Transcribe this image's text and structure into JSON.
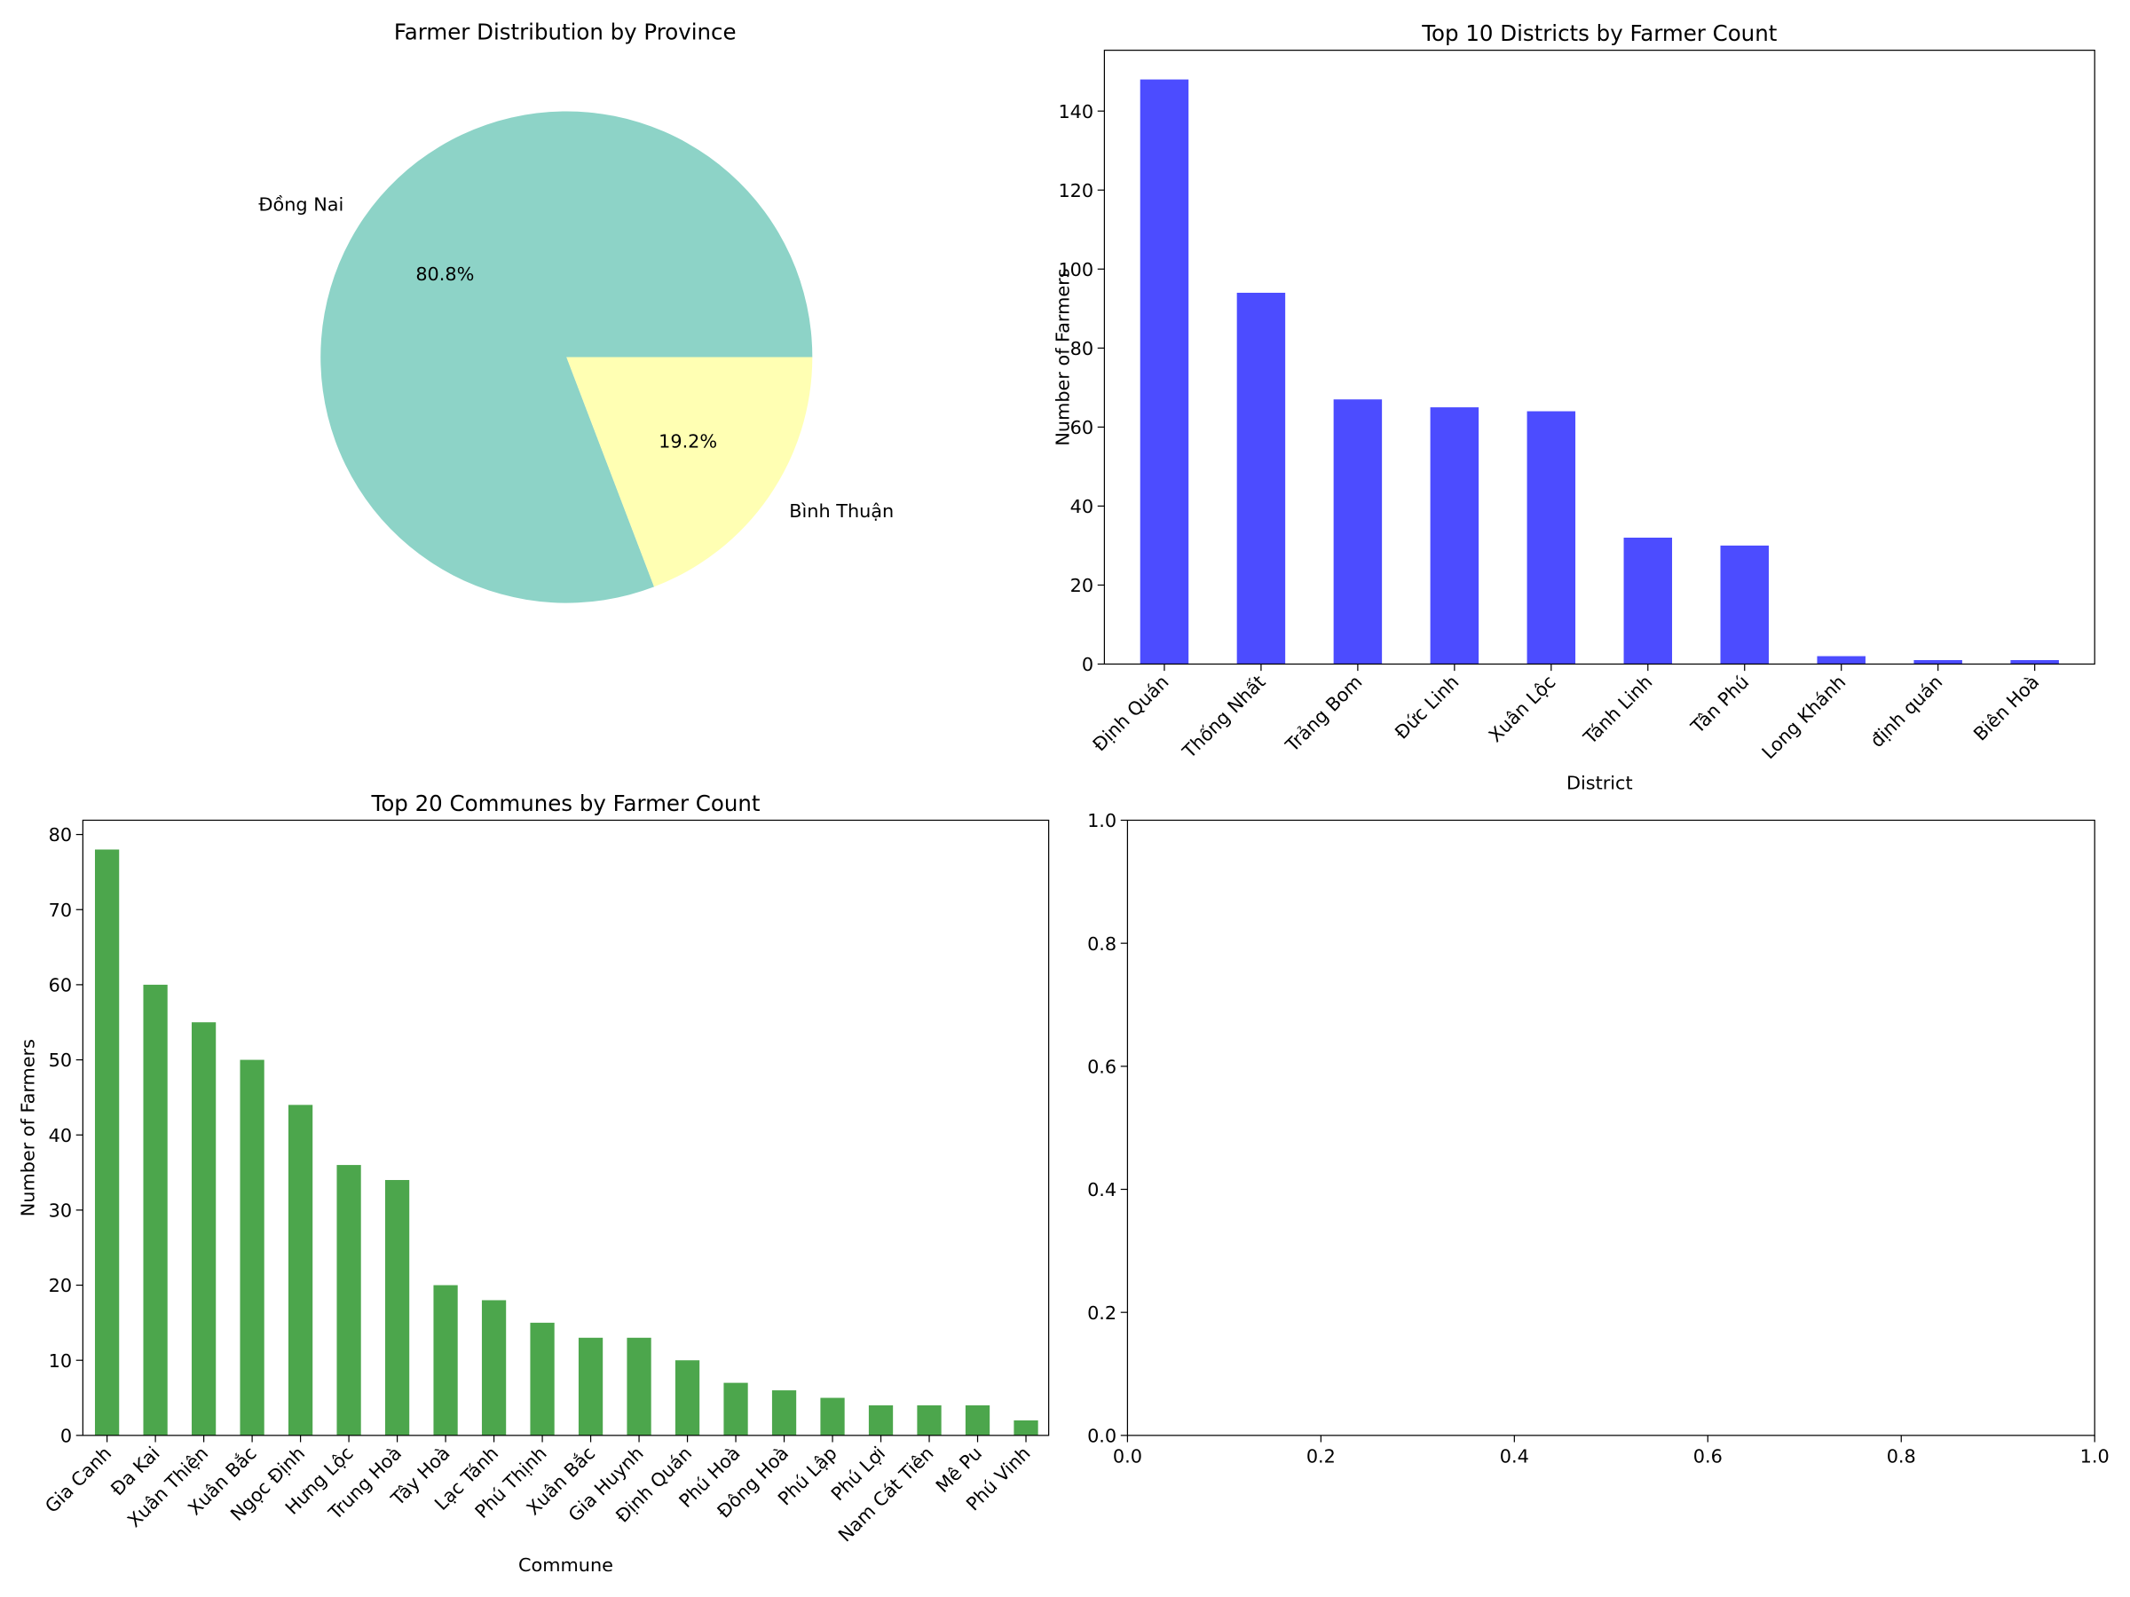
{
  "chart_data": [
    {
      "type": "pie",
      "title": "Farmer Distribution by Province",
      "labels": [
        "Đồng Nai",
        "Bình Thuận"
      ],
      "values": [
        80.8,
        19.2
      ],
      "pct_labels": [
        "80.8%",
        "19.2%"
      ],
      "colors": [
        "#8dd3c7",
        "#ffffb3"
      ]
    },
    {
      "type": "bar",
      "title": "Top 10 Districts by Farmer Count",
      "xlabel": "District",
      "ylabel": "Number of Farmers",
      "categories": [
        "Định Quán",
        "Thống Nhất",
        "Trảng Bom",
        "Đức Linh",
        "Xuân Lộc",
        "Tánh Linh",
        "Tân Phú",
        "Long Khánh",
        "định quán",
        "Biên Hoà"
      ],
      "values": [
        148,
        94,
        67,
        65,
        64,
        32,
        30,
        2,
        1,
        1
      ],
      "ylim": [
        0,
        155.4
      ],
      "yticks": [
        0,
        20,
        40,
        60,
        80,
        100,
        120,
        140
      ],
      "color": "#4c4cff"
    },
    {
      "type": "bar",
      "title": "Top 20 Communes by Farmer Count",
      "xlabel": "Commune",
      "ylabel": "Number of Farmers",
      "categories": [
        "Gia Canh",
        "Đa Kai",
        "Xuân Thiện",
        "Xuân Bắc",
        "Ngọc Định",
        "Hưng Lộc",
        "Trung Hoà",
        "Tây Hoà",
        "Lạc Tánh",
        "Phú Thịnh",
        "Xuân Bắc",
        "Gia Huynh",
        "Định Quán",
        "Phú Hoà",
        "Đông Hoà",
        "Phú Lập",
        "Phú Lợi",
        "Nam Cát Tiên",
        "Mê Pu",
        "Phú Vinh"
      ],
      "values": [
        78,
        60,
        55,
        50,
        44,
        36,
        34,
        20,
        18,
        15,
        13,
        13,
        10,
        7,
        6,
        5,
        4,
        4,
        4,
        2
      ],
      "ylim": [
        0,
        81.9
      ],
      "yticks": [
        0,
        10,
        20,
        30,
        40,
        50,
        60,
        70,
        80
      ],
      "color": "#4ca64c"
    },
    {
      "type": "empty",
      "xlim": [
        0,
        1
      ],
      "ylim": [
        0,
        1
      ],
      "xticks": [
        "0.0",
        "0.2",
        "0.4",
        "0.6",
        "0.8",
        "1.0"
      ],
      "yticks": [
        "0.0",
        "0.2",
        "0.4",
        "0.6",
        "0.8",
        "1.0"
      ]
    }
  ]
}
